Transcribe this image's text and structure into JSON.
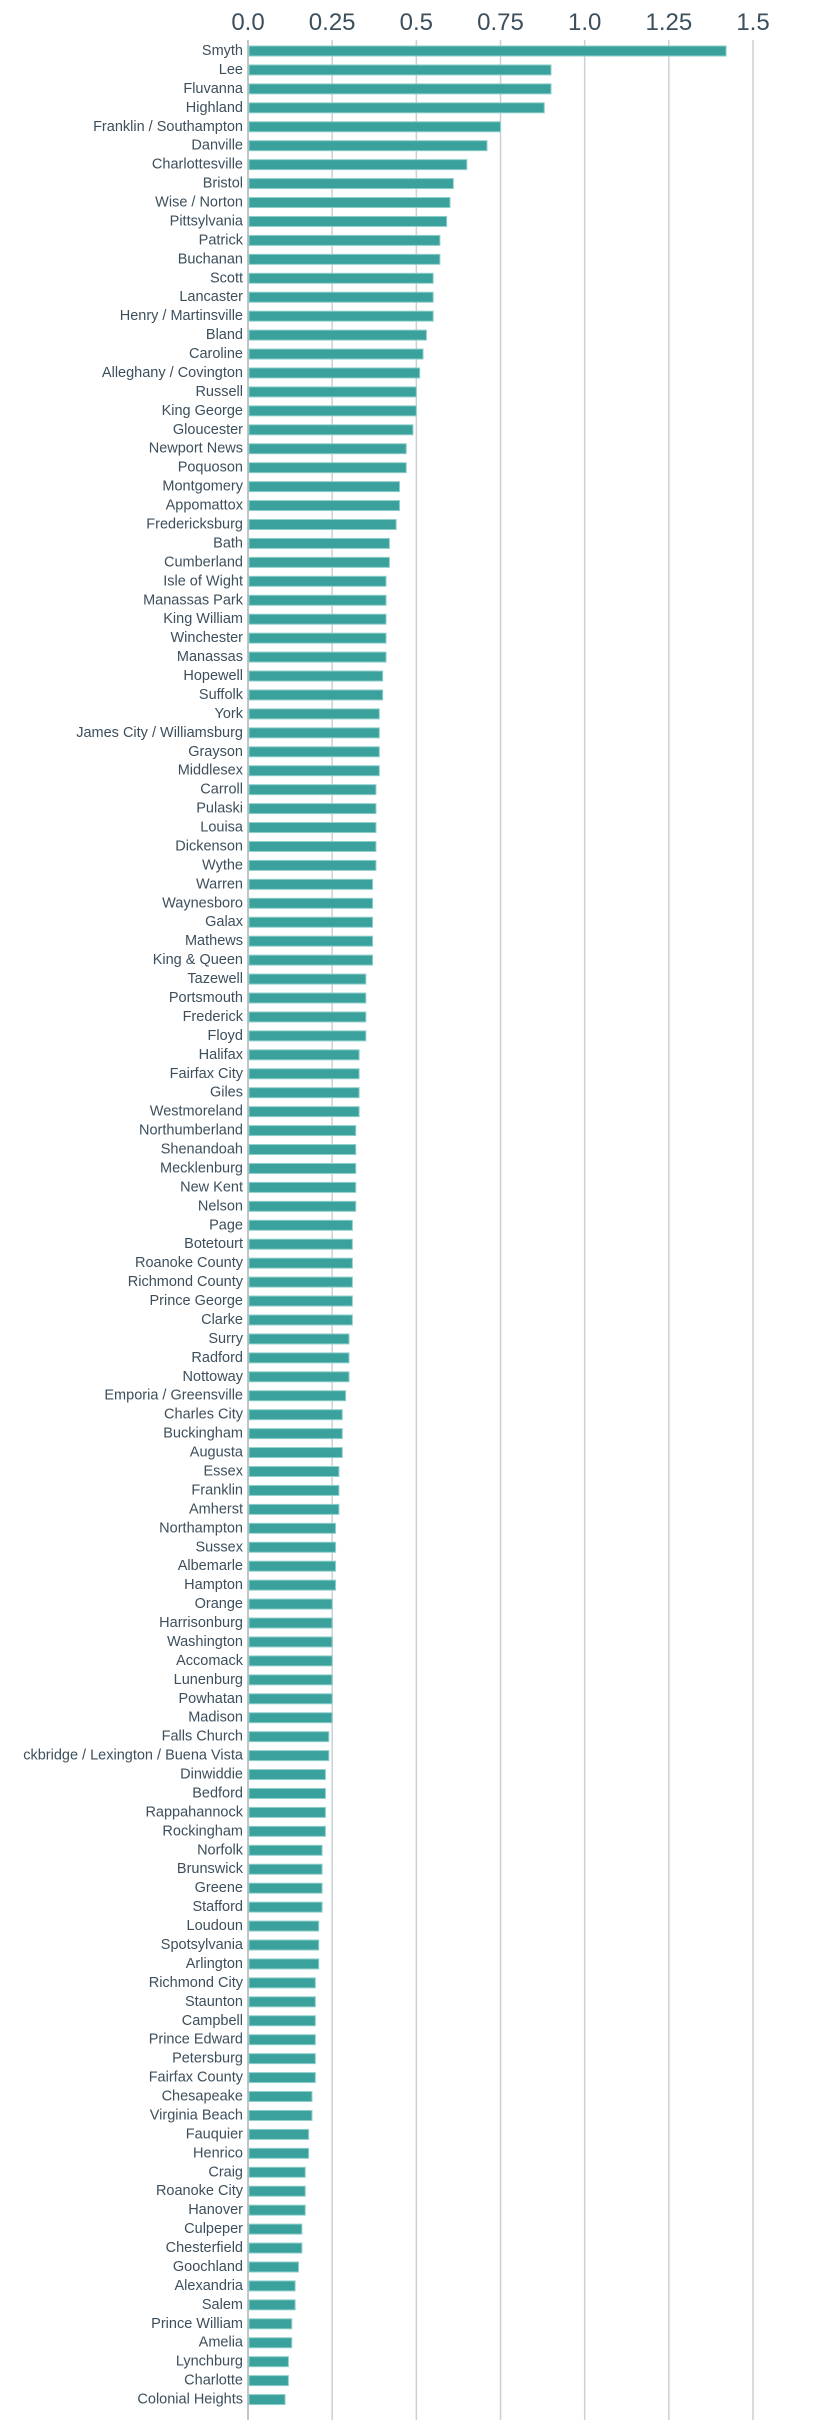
{
  "chart_data": {
    "type": "bar",
    "orientation": "horizontal",
    "title": "",
    "xlabel": "",
    "ylabel": "",
    "xlim": [
      0,
      1.5
    ],
    "x_ticks": [
      "0.0",
      "0.25",
      "0.5",
      "0.75",
      "1.0",
      "1.25",
      "1.5"
    ],
    "x_tick_values": [
      0,
      0.25,
      0.5,
      0.75,
      1.0,
      1.25,
      1.5
    ],
    "x_axis_position": "top",
    "grid": true,
    "bar_color": "#3aa19c",
    "text_color": "#3d4f5c",
    "grid_color": "#c9d1d5",
    "categories": [
      "Smyth",
      "Lee",
      "Fluvanna",
      "Highland",
      "Franklin / Southampton",
      "Danville",
      "Charlottesville",
      "Bristol",
      "Wise / Norton",
      "Pittsylvania",
      "Patrick",
      "Buchanan",
      "Scott",
      "Lancaster",
      "Henry / Martinsville",
      "Bland",
      "Caroline",
      "Alleghany / Covington",
      "Russell",
      "King George",
      "Gloucester",
      "Newport News",
      "Poquoson",
      "Montgomery",
      "Appomattox",
      "Fredericksburg",
      "Bath",
      "Cumberland",
      "Isle of Wight",
      "Manassas Park",
      "King William",
      "Winchester",
      "Manassas",
      "Hopewell",
      "Suffolk",
      "York",
      "James City / Williamsburg",
      "Grayson",
      "Middlesex",
      "Carroll",
      "Pulaski",
      "Louisa",
      "Dickenson",
      "Wythe",
      "Warren",
      "Waynesboro",
      "Galax",
      "Mathews",
      "King & Queen",
      "Tazewell",
      "Portsmouth",
      "Frederick",
      "Floyd",
      "Halifax",
      "Fairfax City",
      "Giles",
      "Westmoreland",
      "Northumberland",
      "Shenandoah",
      "Mecklenburg",
      "New Kent",
      "Nelson",
      "Page",
      "Botetourt",
      "Roanoke County",
      "Richmond County",
      "Prince George",
      "Clarke",
      "Surry",
      "Radford",
      "Nottoway",
      "Emporia / Greensville",
      "Charles City",
      "Buckingham",
      "Augusta",
      "Essex",
      "Franklin",
      "Amherst",
      "Northampton",
      "Sussex",
      "Albemarle",
      "Hampton",
      "Orange",
      "Harrisonburg",
      "Washington",
      "Accomack",
      "Lunenburg",
      "Powhatan",
      "Madison",
      "Falls Church",
      "ckbridge / Lexington / Buena Vista",
      "Dinwiddie",
      "Bedford",
      "Rappahannock",
      "Rockingham",
      "Norfolk",
      "Brunswick",
      "Greene",
      "Stafford",
      "Loudoun",
      "Spotsylvania",
      "Arlington",
      "Richmond City",
      "Staunton",
      "Campbell",
      "Prince Edward",
      "Petersburg",
      "Fairfax County",
      "Chesapeake",
      "Virginia Beach",
      "Fauquier",
      "Henrico",
      "Craig",
      "Roanoke City",
      "Hanover",
      "Culpeper",
      "Chesterfield",
      "Goochland",
      "Alexandria",
      "Salem",
      "Prince William",
      "Amelia",
      "Lynchburg",
      "Charlotte",
      "Colonial Heights"
    ],
    "values": [
      1.42,
      0.9,
      0.9,
      0.88,
      0.75,
      0.71,
      0.65,
      0.61,
      0.6,
      0.59,
      0.57,
      0.57,
      0.55,
      0.55,
      0.55,
      0.53,
      0.52,
      0.51,
      0.5,
      0.5,
      0.49,
      0.47,
      0.47,
      0.45,
      0.45,
      0.44,
      0.42,
      0.42,
      0.41,
      0.41,
      0.41,
      0.41,
      0.41,
      0.4,
      0.4,
      0.39,
      0.39,
      0.39,
      0.39,
      0.38,
      0.38,
      0.38,
      0.38,
      0.38,
      0.37,
      0.37,
      0.37,
      0.37,
      0.37,
      0.35,
      0.35,
      0.35,
      0.35,
      0.33,
      0.33,
      0.33,
      0.33,
      0.32,
      0.32,
      0.32,
      0.32,
      0.32,
      0.31,
      0.31,
      0.31,
      0.31,
      0.31,
      0.31,
      0.3,
      0.3,
      0.3,
      0.29,
      0.28,
      0.28,
      0.28,
      0.27,
      0.27,
      0.27,
      0.26,
      0.26,
      0.26,
      0.26,
      0.25,
      0.25,
      0.25,
      0.25,
      0.25,
      0.25,
      0.25,
      0.24,
      0.24,
      0.23,
      0.23,
      0.23,
      0.23,
      0.22,
      0.22,
      0.22,
      0.22,
      0.21,
      0.21,
      0.21,
      0.2,
      0.2,
      0.2,
      0.2,
      0.2,
      0.2,
      0.19,
      0.19,
      0.18,
      0.18,
      0.17,
      0.17,
      0.17,
      0.16,
      0.16,
      0.15,
      0.14,
      0.14,
      0.13,
      0.13,
      0.12,
      0.12,
      0.11
    ]
  }
}
